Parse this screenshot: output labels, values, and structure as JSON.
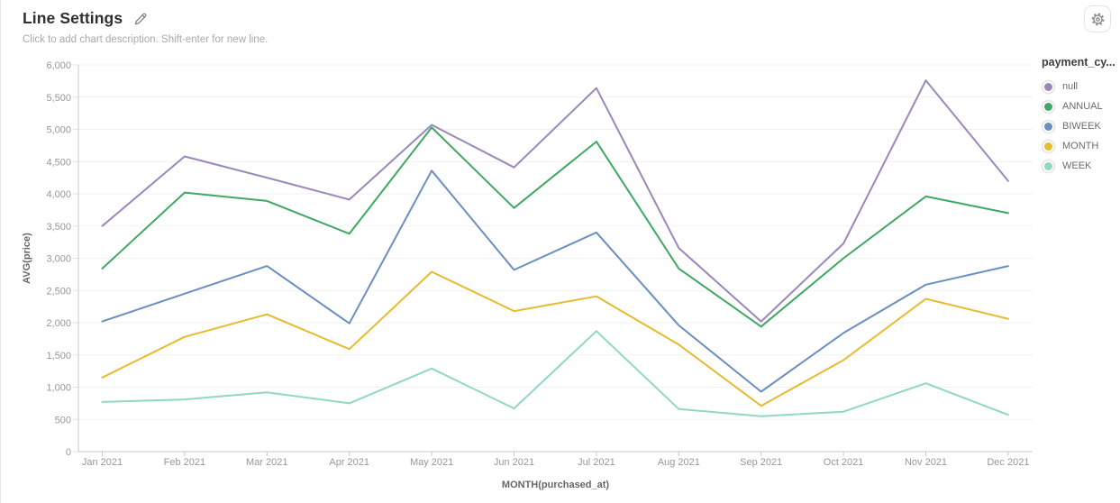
{
  "header": {
    "title": "Line Settings",
    "subtitle": "Click to add chart description. Shift-enter for new line.",
    "icons": {
      "edit": "pencil-icon",
      "settings": "gear-icon"
    }
  },
  "chart_data": {
    "type": "line",
    "xlabel": "MONTH(purchased_at)",
    "ylabel": "AVG(price)",
    "legend_title": "payment_cy...",
    "legend_position": "right",
    "grid": true,
    "ylim": [
      0,
      6000
    ],
    "y_ticks": [
      0,
      500,
      1000,
      1500,
      2000,
      2500,
      3000,
      3500,
      4000,
      4500,
      5000,
      5500,
      6000
    ],
    "y_tick_labels": [
      "0",
      "500",
      "1,000",
      "1,500",
      "2,000",
      "2,500",
      "3,000",
      "3,500",
      "4,000",
      "4,500",
      "5,000",
      "5,500",
      "6,000"
    ],
    "categories": [
      "Jan 2021",
      "Feb 2021",
      "Mar 2021",
      "Apr 2021",
      "May 2021",
      "Jun 2021",
      "Jul 2021",
      "Aug 2021",
      "Sep 2021",
      "Oct 2021",
      "Nov 2021",
      "Dec 2021"
    ],
    "series": [
      {
        "name": "null",
        "color": "#9b87b9",
        "values": [
          3500,
          4580,
          4250,
          3910,
          5070,
          4410,
          5640,
          3160,
          2020,
          3230,
          5760,
          4200
        ]
      },
      {
        "name": "ANNUAL",
        "color": "#40a864",
        "values": [
          2840,
          4020,
          3890,
          3380,
          5030,
          3780,
          4810,
          2840,
          1940,
          3000,
          3960,
          3700
        ]
      },
      {
        "name": "BIWEEK",
        "color": "#6a8fc0",
        "values": [
          2020,
          2450,
          2880,
          1990,
          4360,
          2820,
          3400,
          1960,
          930,
          1840,
          2590,
          2880
        ]
      },
      {
        "name": "MONTH",
        "color": "#e8ba30",
        "values": [
          1150,
          1780,
          2130,
          1590,
          2790,
          2180,
          2410,
          1660,
          710,
          1420,
          2370,
          2060
        ]
      },
      {
        "name": "WEEK",
        "color": "#90d8c3",
        "values": [
          770,
          810,
          920,
          750,
          1290,
          670,
          1870,
          660,
          550,
          620,
          1060,
          570
        ]
      }
    ],
    "colors": {
      "grid_line": "#f1f1f1",
      "axis_line": "#c9c9c9",
      "tick_label": "#979797",
      "axis_title": "#666666"
    }
  }
}
